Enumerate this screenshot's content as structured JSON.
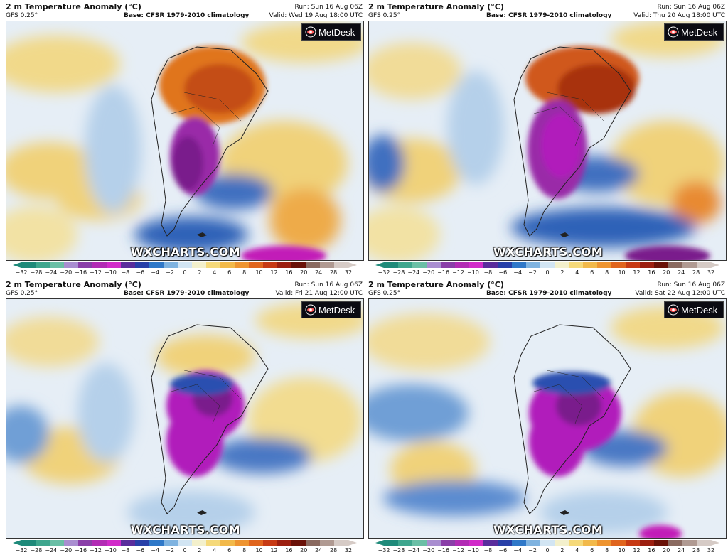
{
  "panels": [
    {
      "title": "2 m Temperature Anomaly (°C)",
      "model": "GFS 0.25°",
      "base": "Base: CFSR 1979-2010 climatology",
      "run": "Run: Sun 16 Aug 06Z",
      "valid": "Valid: Wed 19 Aug 18:00 UTC"
    },
    {
      "title": "2 m Temperature Anomaly (°C)",
      "model": "GFS 0.25°",
      "base": "Base: CFSR 1979-2010 climatology",
      "run": "Run: Sun 16 Aug 06Z",
      "valid": "Valid: Thu 20 Aug 18:00 UTC"
    },
    {
      "title": "2 m Temperature Anomaly (°C)",
      "model": "GFS 0.25°",
      "base": "Base: CFSR 1979-2010 climatology",
      "run": "Run: Sun 16 Aug 06Z",
      "valid": "Valid: Fri 21 Aug 12:00 UTC"
    },
    {
      "title": "2 m Temperature Anomaly (°C)",
      "model": "GFS 0.25°",
      "base": "Base: CFSR 1979-2010 climatology",
      "run": "Run: Sun 16 Aug 06Z",
      "valid": "Valid: Sat 22 Aug 12:00 UTC"
    }
  ],
  "logo_text": "MetDesk",
  "watermark": "WXCHARTS.COM",
  "colorbar": {
    "ticks": [
      "−32",
      "−28",
      "−24",
      "−20",
      "−16",
      "−12",
      "−10",
      "−8",
      "−6",
      "−4",
      "−2",
      "0",
      "2",
      "4",
      "6",
      "8",
      "10",
      "12",
      "16",
      "20",
      "24",
      "28",
      "32"
    ],
    "colors": [
      "#1f8a7a",
      "#3fa68e",
      "#6bbfa6",
      "#a98ed0",
      "#8a3fa8",
      "#b22cb4",
      "#d12bc9",
      "#5a2d9c",
      "#2840a8",
      "#2f78c8",
      "#7fb3e0",
      "#d2e5f3",
      "#f3f0cc",
      "#f5d97a",
      "#f2b94a",
      "#ee9430",
      "#e0651e",
      "#c73a14",
      "#9c1f10",
      "#6a1208",
      "#8a6a60",
      "#b09a92",
      "#d6cbc6"
    ]
  },
  "colors": {
    "cold_max": "#b11dbb",
    "cold_core": "#7a1a8c",
    "cold": "#2b4fb0",
    "cool": "#8cb8e2",
    "neutral": "#e8eff6",
    "warm": "#f0d27a",
    "hot": "#e07a2a",
    "very_hot": "#b8340e",
    "land_border": "#222222"
  }
}
